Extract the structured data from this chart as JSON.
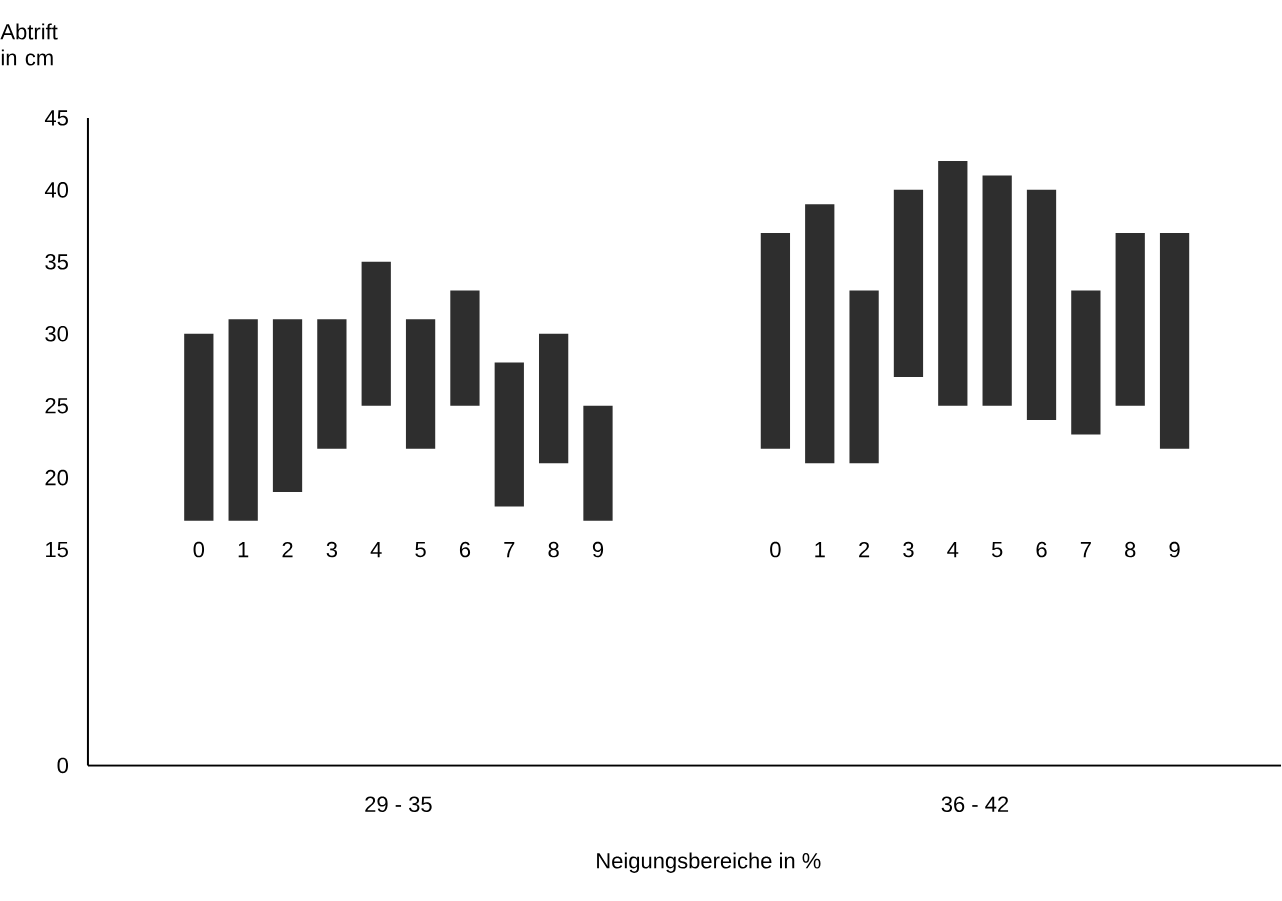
{
  "chart_data": {
    "type": "bar",
    "xlabel": "Neigungsbereiche in %",
    "ylabel": "Abtrift in cm",
    "categories": [
      "0",
      "1",
      "2",
      "3",
      "4",
      "5",
      "6",
      "7",
      "8",
      "9",
      null,
      null,
      null,
      "0",
      "1",
      "2",
      "3",
      "4",
      "5",
      "6",
      "7",
      "8",
      "9"
    ],
    "base": [
      17,
      17,
      19,
      22,
      25,
      22,
      25,
      18,
      21,
      17,
      null,
      null,
      null,
      22,
      21,
      21,
      27,
      25,
      25,
      24,
      23,
      25,
      22
    ],
    "values": [
      13,
      14,
      12,
      9,
      10,
      9,
      8,
      10,
      9,
      8,
      null,
      null,
      null,
      15,
      18,
      12,
      13,
      17,
      16,
      16,
      10,
      12,
      15
    ],
    "color": "#2e2e2e",
    "ylim": [
      0,
      45
    ],
    "yticks": [
      0,
      15,
      20,
      25,
      30,
      35,
      40,
      45
    ],
    "annotations": [
      "29 - 35",
      "36 - 42"
    ]
  }
}
